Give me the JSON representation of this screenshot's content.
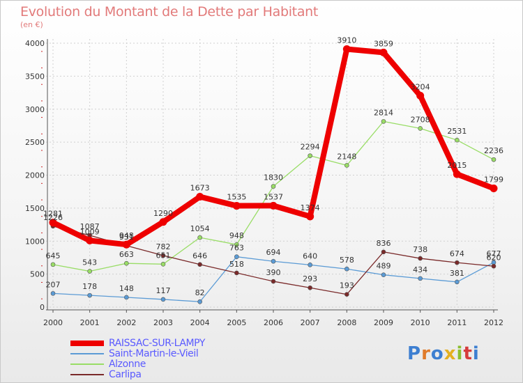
{
  "title": "Evolution du Montant de la Dette par Habitant",
  "subtitle": "(en €)",
  "logo_text": "Proxiti",
  "colors": {
    "title": "#e27a7a",
    "legend_text": "#5a5aff",
    "grid": "#d0d0d0",
    "tick_marks": "#cc2222"
  },
  "chart_data": {
    "type": "line",
    "x": [
      "2000",
      "2001",
      "2002",
      "2003",
      "2004",
      "2005",
      "2006",
      "2007",
      "2008",
      "2009",
      "2010",
      "2011",
      "2012"
    ],
    "ylim": [
      0,
      4000
    ],
    "yticks": [
      0,
      500,
      1000,
      1500,
      2000,
      2500,
      3000,
      3500,
      4000
    ],
    "grid": true,
    "legend_position": "bottom-left",
    "series": [
      {
        "name": "RAISSAC-SUR-LAMPY",
        "color": "#ee0000",
        "values": [
          1281,
          1009,
          948,
          1290,
          1673,
          1535,
          1537,
          1374,
          3910,
          3859,
          3204,
          2015,
          1799
        ],
        "labels": [
          "1281",
          "1009",
          "948",
          "1290",
          "1673",
          "1535",
          "1537",
          "1374",
          "3910",
          "3859",
          "3204",
          "2015",
          "1799"
        ]
      },
      {
        "name": "Saint-Martin-le-Vieil",
        "color": "#5b9bd5",
        "values": [
          207,
          178,
          148,
          117,
          82,
          763,
          694,
          640,
          578,
          489,
          434,
          381,
          677
        ],
        "labels": [
          "207",
          "178",
          "148",
          "117",
          "82",
          "763",
          "694",
          "640",
          "578",
          "489",
          "434",
          "381",
          "677"
        ]
      },
      {
        "name": "Alzonne",
        "color": "#99dd66",
        "values": [
          645,
          543,
          663,
          651,
          1054,
          948,
          1830,
          2294,
          2148,
          2814,
          2708,
          2531,
          2236
        ],
        "labels": [
          "645",
          "543",
          "663",
          "651",
          "1054",
          "948",
          "1830",
          "2294",
          "2148",
          "2814",
          "2708",
          "2531",
          "2236"
        ]
      },
      {
        "name": "Carlipa",
        "color": "#7a2a2a",
        "values": [
          1226,
          1087,
          931,
          782,
          646,
          518,
          390,
          293,
          193,
          836,
          738,
          674,
          620
        ],
        "labels": [
          "1226",
          "1087",
          "931",
          "782",
          "646",
          "518",
          "390",
          "293",
          "193",
          "836",
          "738",
          "674",
          "620"
        ]
      }
    ]
  }
}
